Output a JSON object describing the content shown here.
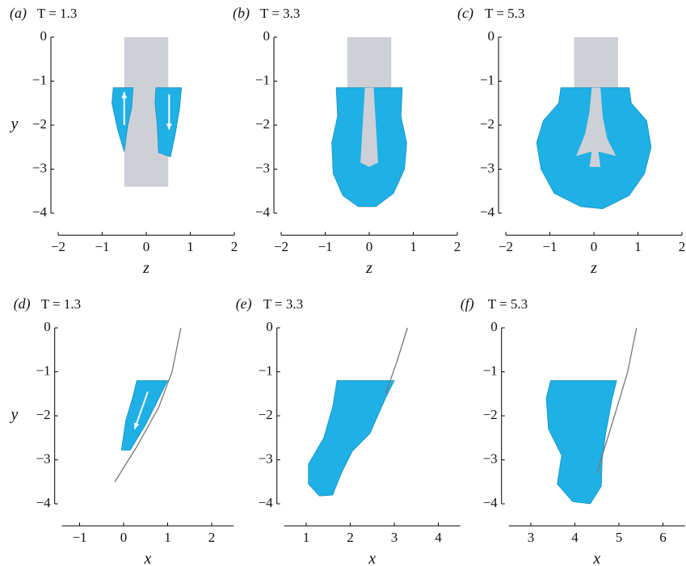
{
  "panels": [
    {
      "label": "(a)",
      "time": "T = 1.3",
      "xlabel": "z",
      "ylabel": "y",
      "xlim": [
        -2,
        2
      ],
      "ylim": [
        -4.5,
        0
      ],
      "xticks": [
        {
          "value": -2,
          "label": "−2"
        },
        {
          "value": -1,
          "label": "−1"
        },
        0,
        1,
        2
      ],
      "yticks": [
        0,
        {
          "value": -1,
          "label": "−1"
        },
        {
          "value": -2,
          "label": "−2"
        },
        {
          "value": -3,
          "label": "−3"
        },
        {
          "value": -4,
          "label": "−4"
        }
      ]
    },
    {
      "label": "(b)",
      "time": "T = 3.3",
      "xlabel": "z",
      "xlim": [
        -2,
        2
      ],
      "ylim": [
        -4.5,
        0
      ],
      "xticks": [
        {
          "value": -2,
          "label": "−2"
        },
        {
          "value": -1,
          "label": "−1"
        },
        0,
        1,
        2
      ],
      "yticks": [
        0,
        {
          "value": -1,
          "label": "−1"
        },
        {
          "value": -2,
          "label": "−2"
        },
        {
          "value": -3,
          "label": "−3"
        },
        {
          "value": -4,
          "label": "−4"
        }
      ]
    },
    {
      "label": "(c)",
      "time": "T = 5.3",
      "xlabel": "z",
      "xlim": [
        -2,
        2
      ],
      "ylim": [
        -4.5,
        0
      ],
      "xticks": [
        {
          "value": -2,
          "label": "−2"
        },
        {
          "value": -1,
          "label": "−1"
        },
        0,
        1,
        2
      ],
      "yticks": [
        0,
        {
          "value": -1,
          "label": "−1"
        },
        {
          "value": -2,
          "label": "−2"
        },
        {
          "value": -3,
          "label": "−3"
        },
        {
          "value": -4,
          "label": "−4"
        }
      ]
    },
    {
      "label": "(d)",
      "time": "T = 1.3",
      "xlabel": "x",
      "ylabel": "y",
      "xlim": [
        -1.4,
        2.5
      ],
      "ylim": [
        -4.5,
        0
      ],
      "xticks": [
        {
          "value": -1,
          "label": "−1"
        },
        0,
        1,
        2
      ],
      "yticks": [
        0,
        {
          "value": -1,
          "label": "−1"
        },
        {
          "value": -2,
          "label": "−2"
        },
        {
          "value": -3,
          "label": "−3"
        },
        {
          "value": -4,
          "label": "−4"
        }
      ]
    },
    {
      "label": "(e)",
      "time": "T = 3.3",
      "xlabel": "x",
      "xlim": [
        0.5,
        4.5
      ],
      "ylim": [
        -4.5,
        0
      ],
      "xticks": [
        1,
        2,
        3,
        4
      ],
      "yticks": [
        0,
        {
          "value": -1,
          "label": "−1"
        },
        {
          "value": -2,
          "label": "−2"
        },
        {
          "value": -3,
          "label": "−3"
        },
        {
          "value": -4,
          "label": "−4"
        }
      ]
    },
    {
      "label": "(f)",
      "time": "T = 5.3",
      "xlabel": "x",
      "xlim": [
        2.5,
        6.5
      ],
      "ylim": [
        -4.5,
        0
      ],
      "xticks": [
        3,
        4,
        5,
        6
      ],
      "yticks": [
        0,
        {
          "value": -1,
          "label": "−1"
        },
        {
          "value": -2,
          "label": "−2"
        },
        {
          "value": -3,
          "label": "−3"
        },
        {
          "value": -4,
          "label": "−4"
        }
      ]
    }
  ]
}
